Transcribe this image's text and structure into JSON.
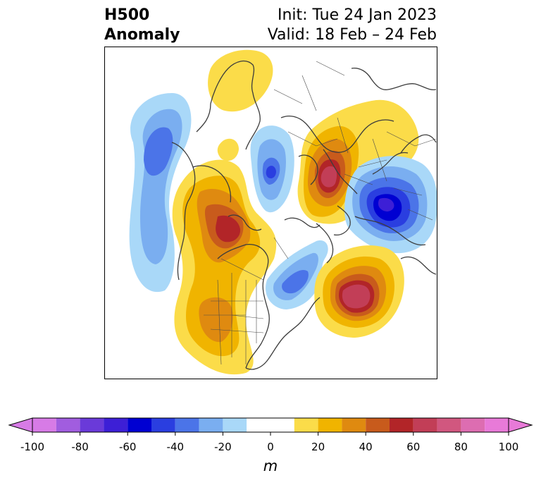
{
  "title": {
    "left_line1": "H500",
    "left_line2": "Anomaly",
    "right_line1": "Init: Tue 24 Jan 2023",
    "right_line2": "Valid: 18 Feb – 24 Feb"
  },
  "colorbar": {
    "unit": "m",
    "tick_labels": [
      "-100",
      "-80",
      "-60",
      "-40",
      "-20",
      "0",
      "20",
      "40",
      "60",
      "80",
      "100"
    ],
    "bins": [
      {
        "from": -100,
        "to": -90,
        "color": "#d77be6"
      },
      {
        "from": -90,
        "to": -80,
        "color": "#a15ddf"
      },
      {
        "from": -80,
        "to": -70,
        "color": "#6a3ad9"
      },
      {
        "from": -70,
        "to": -60,
        "color": "#3d1fd6"
      },
      {
        "from": -60,
        "to": -50,
        "color": "#0000d2"
      },
      {
        "from": -50,
        "to": -40,
        "color": "#2a3ee0"
      },
      {
        "from": -40,
        "to": -30,
        "color": "#4b74e8"
      },
      {
        "from": -30,
        "to": -20,
        "color": "#7aaef0"
      },
      {
        "from": -20,
        "to": -10,
        "color": "#a9d8f8"
      },
      {
        "from": -10,
        "to": 10,
        "color": "#ffffff"
      },
      {
        "from": 10,
        "to": 20,
        "color": "#fbdc49"
      },
      {
        "from": 20,
        "to": 30,
        "color": "#f0b400"
      },
      {
        "from": 30,
        "to": 40,
        "color": "#df8a10"
      },
      {
        "from": 40,
        "to": 50,
        "color": "#c85b1c"
      },
      {
        "from": 50,
        "to": 60,
        "color": "#b22528"
      },
      {
        "from": 60,
        "to": 70,
        "color": "#c23e57"
      },
      {
        "from": 70,
        "to": 80,
        "color": "#d1577f"
      },
      {
        "from": 80,
        "to": 90,
        "color": "#dd6db1"
      },
      {
        "from": 90,
        "to": 100,
        "color": "#e87ad8"
      }
    ],
    "extend_low_color": "#d77be6",
    "extend_high_color": "#e87ad8"
  },
  "map": {
    "projection": "north-polar stereographic",
    "coastline_color": "#3c3c3c",
    "anomaly_centers": [
      {
        "name": "north-pacific-low",
        "peak": -45
      },
      {
        "name": "alaska-nw-canada-high",
        "peak": 55
      },
      {
        "name": "western-us-high",
        "peak": 35
      },
      {
        "name": "scandinavia-high",
        "peak": 75
      },
      {
        "name": "siberia-low",
        "peak": -60
      },
      {
        "name": "greenland-sea-low",
        "peak": -45
      },
      {
        "name": "eastern-canada-low",
        "peak": -40
      },
      {
        "name": "north-atlantic-high",
        "peak": 65
      },
      {
        "name": "arctic-russia-high",
        "peak": 20
      }
    ]
  }
}
